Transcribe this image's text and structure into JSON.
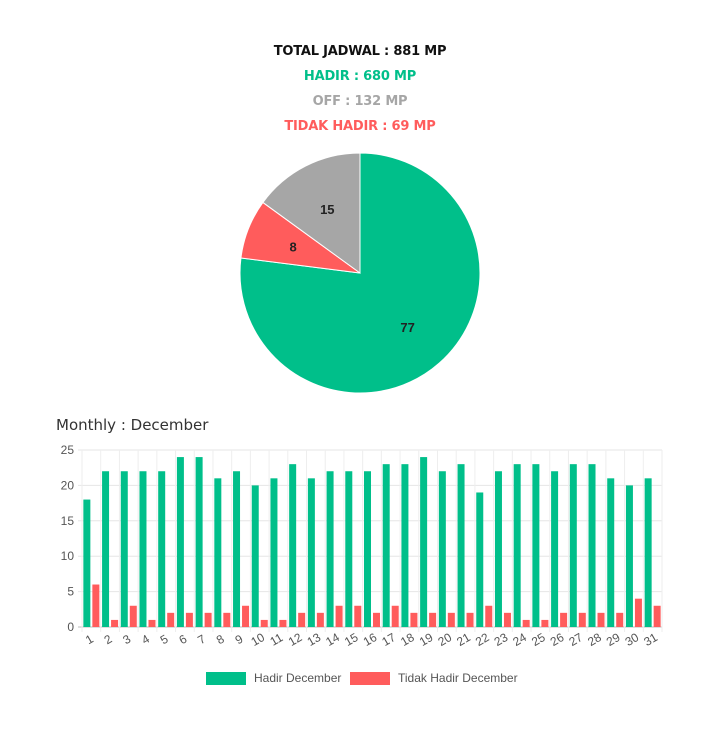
{
  "summary": {
    "total": "TOTAL JADWAL : 881 MP",
    "hadir": "HADIR : 680 MP",
    "off": "OFF : 132 MP",
    "tidak_hadir": "TIDAK HADIR : 69 MP"
  },
  "colors": {
    "hadir": "#00bf8a",
    "tidak_hadir": "#ff5c5c",
    "off": "#a6a6a6",
    "total": "#111111"
  },
  "monthly_title": "Monthly : December",
  "chart_data": [
    {
      "type": "pie",
      "slices": [
        {
          "label": "Hadir",
          "value": 77,
          "color": "#00bf8a"
        },
        {
          "label": "Tidak Hadir",
          "value": 8,
          "color": "#ff5c5c"
        },
        {
          "label": "Off",
          "value": 15,
          "color": "#a6a6a6"
        }
      ]
    },
    {
      "type": "bar",
      "title": "Monthly : December",
      "categories": [
        "1",
        "2",
        "3",
        "4",
        "5",
        "6",
        "7",
        "8",
        "9",
        "10",
        "11",
        "12",
        "13",
        "14",
        "15",
        "16",
        "17",
        "18",
        "19",
        "20",
        "21",
        "22",
        "23",
        "24",
        "25",
        "26",
        "27",
        "28",
        "29",
        "30",
        "31"
      ],
      "series": [
        {
          "name": "Hadir December",
          "color": "#00bf8a",
          "values": [
            18,
            22,
            22,
            22,
            22,
            24,
            24,
            21,
            22,
            20,
            21,
            23,
            21,
            22,
            22,
            22,
            23,
            23,
            24,
            22,
            23,
            19,
            22,
            23,
            23,
            22,
            23,
            23,
            21,
            20,
            21
          ]
        },
        {
          "name": "Tidak Hadir December",
          "color": "#ff5c5c",
          "values": [
            6,
            1,
            3,
            1,
            2,
            2,
            2,
            2,
            3,
            1,
            1,
            2,
            2,
            3,
            3,
            2,
            3,
            2,
            2,
            2,
            2,
            3,
            2,
            1,
            1,
            2,
            2,
            2,
            2,
            4,
            3
          ]
        }
      ],
      "ylim": [
        0,
        25
      ],
      "yticks": [
        0,
        5,
        10,
        15,
        20,
        25
      ],
      "grid": true,
      "legend": "bottom"
    }
  ]
}
